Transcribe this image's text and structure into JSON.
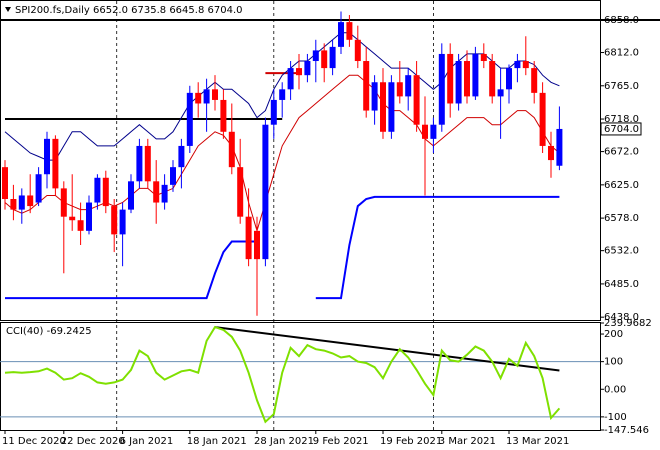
{
  "chart_data": [
    {
      "type": "candlestick",
      "title": "SPI200.fs,Daily  6652.0 6735.8 6645.8 6704.0",
      "categories": [
        "11 Dec 2020",
        null,
        null,
        null,
        null,
        null,
        null,
        "22 Dec 2020",
        null,
        null,
        null,
        null,
        null,
        null,
        "6 Jan 2021",
        null,
        null,
        null,
        null,
        null,
        null,
        null,
        "18 Jan 2021",
        null,
        null,
        null,
        null,
        null,
        null,
        null,
        "28 Jan 2021",
        null,
        null,
        null,
        null,
        null,
        null,
        "9 Feb 2021",
        null,
        null,
        null,
        null,
        null,
        null,
        null,
        "19 Feb 2021",
        null,
        null,
        null,
        null,
        null,
        null,
        "3 Mar 2021",
        null,
        null,
        null,
        null,
        null,
        null,
        null,
        "13 Mar 2021",
        null,
        null,
        null,
        null,
        null,
        null
      ],
      "open": [
        6650,
        6605,
        6590,
        6610,
        6600,
        6640,
        6690,
        6620,
        6580,
        6575,
        6560,
        6600,
        6635,
        6595,
        6555,
        6590,
        6630,
        6680,
        6630,
        6600,
        6625,
        6650,
        6680,
        6755,
        6740,
        6760,
        6745,
        6700,
        6650,
        6580,
        6560,
        6520,
        6710,
        6745,
        6760,
        6790,
        6780,
        6800,
        6815,
        6790,
        6820,
        6855,
        6830,
        6800,
        6730,
        6770,
        6700,
        6770,
        6750,
        6780,
        6710,
        6690,
        6710,
        6810,
        6740,
        6800,
        6750,
        6810,
        6800,
        6750,
        6760,
        6790,
        6800,
        6790,
        6755,
        6680,
        6652
      ],
      "high": [
        6660,
        6625,
        6620,
        6640,
        6650,
        6700,
        6695,
        6630,
        6640,
        6600,
        6610,
        6640,
        6645,
        6605,
        6600,
        6640,
        6690,
        6690,
        6660,
        6640,
        6660,
        6690,
        6765,
        6770,
        6775,
        6780,
        6760,
        6740,
        6690,
        6620,
        6580,
        6720,
        6760,
        6770,
        6800,
        6810,
        6810,
        6830,
        6825,
        6830,
        6870,
        6865,
        6850,
        6820,
        6780,
        6790,
        6780,
        6800,
        6790,
        6800,
        6750,
        6720,
        6825,
        6825,
        6810,
        6815,
        6820,
        6825,
        6810,
        6790,
        6795,
        6810,
        6835,
        6800,
        6770,
        6700,
        6735.8
      ],
      "low": [
        6590,
        6575,
        6570,
        6585,
        6595,
        6620,
        6610,
        6500,
        6560,
        6540,
        6555,
        6590,
        6585,
        6530,
        6510,
        6585,
        6620,
        6620,
        6570,
        6590,
        6615,
        6620,
        6670,
        6720,
        6700,
        6730,
        6690,
        6640,
        6570,
        6510,
        6440,
        6510,
        6690,
        6720,
        6745,
        6760,
        6770,
        6770,
        6770,
        6780,
        6810,
        6820,
        6790,
        6720,
        6710,
        6690,
        6690,
        6740,
        6730,
        6700,
        6610,
        6670,
        6700,
        6720,
        6730,
        6740,
        6745,
        6790,
        6740,
        6690,
        6740,
        6770,
        6780,
        6740,
        6670,
        6635,
        6645.8
      ],
      "close": [
        6605,
        6590,
        6610,
        6595,
        6640,
        6690,
        6620,
        6580,
        6575,
        6560,
        6600,
        6635,
        6595,
        6555,
        6590,
        6630,
        6680,
        6630,
        6600,
        6625,
        6650,
        6680,
        6755,
        6740,
        6760,
        6745,
        6700,
        6650,
        6580,
        6520,
        6520,
        6710,
        6745,
        6760,
        6790,
        6780,
        6800,
        6815,
        6790,
        6820,
        6855,
        6830,
        6800,
        6730,
        6770,
        6700,
        6770,
        6750,
        6780,
        6710,
        6690,
        6710,
        6810,
        6740,
        6800,
        6750,
        6810,
        6800,
        6750,
        6760,
        6790,
        6800,
        6790,
        6755,
        6680,
        6660,
        6704
      ],
      "up_color": "#0000ff",
      "down_color": "#ff0000",
      "series": [
        {
          "color": "#00008b",
          "width": 1,
          "values": [
            6700,
            6690,
            6680,
            6670,
            6665,
            6660,
            6660,
            6680,
            6700,
            6700,
            6690,
            6680,
            6680,
            6680,
            6690,
            6700,
            6710,
            6700,
            6690,
            6690,
            6700,
            6720,
            6740,
            6750,
            6760,
            6770,
            6760,
            6760,
            6750,
            6740,
            6720,
            6730,
            6760,
            6780,
            6790,
            6800,
            6800,
            6810,
            6820,
            6830,
            6840,
            6840,
            6830,
            6820,
            6810,
            6800,
            6790,
            6790,
            6790,
            6780,
            6770,
            6760,
            6770,
            6790,
            6800,
            6810,
            6810,
            6810,
            6800,
            6790,
            6790,
            6800,
            6800,
            6795,
            6780,
            6770,
            6765
          ]
        },
        {
          "color": "#d00000",
          "width": 1,
          "values": [
            6600,
            6590,
            6585,
            6590,
            6600,
            6610,
            6610,
            6600,
            6595,
            6590,
            6590,
            6595,
            6600,
            6595,
            6600,
            6610,
            6620,
            6620,
            6610,
            6615,
            6620,
            6640,
            6660,
            6680,
            6690,
            6700,
            6695,
            6680,
            6650,
            6600,
            6560,
            6600,
            6640,
            6680,
            6700,
            6720,
            6730,
            6740,
            6750,
            6760,
            6770,
            6780,
            6780,
            6770,
            6760,
            6740,
            6730,
            6730,
            6720,
            6710,
            6690,
            6680,
            6690,
            6700,
            6710,
            6720,
            6720,
            6720,
            6710,
            6710,
            6720,
            6730,
            6730,
            6720,
            6700,
            6680,
            6670
          ]
        },
        {
          "color": "#0000ff",
          "width": 2,
          "values": [
            6465,
            6465,
            6465,
            6465,
            6465,
            6465,
            6465,
            6465,
            6465,
            6465,
            6465,
            6465,
            6465,
            6465,
            6465,
            6465,
            6465,
            6465,
            6465,
            6465,
            6465,
            6465,
            6465,
            6465,
            6465,
            6500,
            6530,
            6545,
            6545,
            6545,
            6545,
            null,
            null,
            null,
            null,
            null,
            null,
            6465,
            6465,
            6465,
            6465,
            6540,
            6595,
            6605,
            6608,
            6608,
            6608,
            6608,
            6608,
            6608,
            6608,
            6608,
            6608,
            6608,
            6608,
            6608,
            6608,
            6608,
            6608,
            6608,
            6608,
            6608,
            6608,
            6608,
            6608,
            6608,
            6608
          ]
        }
      ],
      "segments": [
        {
          "color": "#000000",
          "x": [
            0,
            33
          ],
          "values": [
            6718,
            6718
          ]
        },
        {
          "color": "#d00000",
          "x": [
            31,
            35
          ],
          "values": [
            6783,
            6783
          ]
        }
      ],
      "hlines": [
        {
          "value": 6858,
          "color": "#000000"
        }
      ],
      "ylim": [
        6434,
        6882
      ],
      "yticks": [
        {
          "value": 6438,
          "label": "6438.0"
        },
        {
          "value": 6485,
          "label": "6485.0"
        },
        {
          "value": 6532,
          "label": "6532.0"
        },
        {
          "value": 6578,
          "label": "6578.0"
        },
        {
          "value": 6625,
          "label": "6625.0"
        },
        {
          "value": 6672,
          "label": "6672.0"
        },
        {
          "value": 6718,
          "label": "6718.0"
        },
        {
          "value": 6765,
          "label": "6765.0"
        },
        {
          "value": 6812,
          "label": "6812.0"
        },
        {
          "value": 6858,
          "label": "6858.0"
        }
      ],
      "last_price": {
        "value": 6704,
        "label": "6704.0"
      }
    },
    {
      "type": "line",
      "title": "CCI(40) -69.2425",
      "series": [
        {
          "color": "#7fe000",
          "values": [
            60,
            62,
            60,
            62,
            65,
            75,
            60,
            35,
            40,
            58,
            45,
            25,
            20,
            25,
            35,
            70,
            140,
            120,
            60,
            35,
            50,
            65,
            70,
            60,
            175,
            225,
            215,
            190,
            140,
            60,
            -40,
            -118,
            -90,
            60,
            150,
            120,
            160,
            145,
            140,
            130,
            115,
            120,
            100,
            95,
            80,
            40,
            100,
            145,
            115,
            70,
            20,
            -21,
            140,
            105,
            100,
            125,
            155,
            140,
            100,
            40,
            110,
            85,
            168,
            120,
            40,
            -104,
            -69.2425
          ]
        }
      ],
      "segments": [
        {
          "color": "#000000",
          "x": [
            25,
            66
          ],
          "values": [
            225,
            68
          ]
        }
      ],
      "levels": [
        100,
        -100
      ],
      "ylim": [
        -147.546,
        239.9682
      ],
      "yticks": [
        239.9682,
        200,
        100,
        {
          "value": 0,
          "label": "0.00"
        },
        -100,
        -147.546
      ]
    }
  ]
}
